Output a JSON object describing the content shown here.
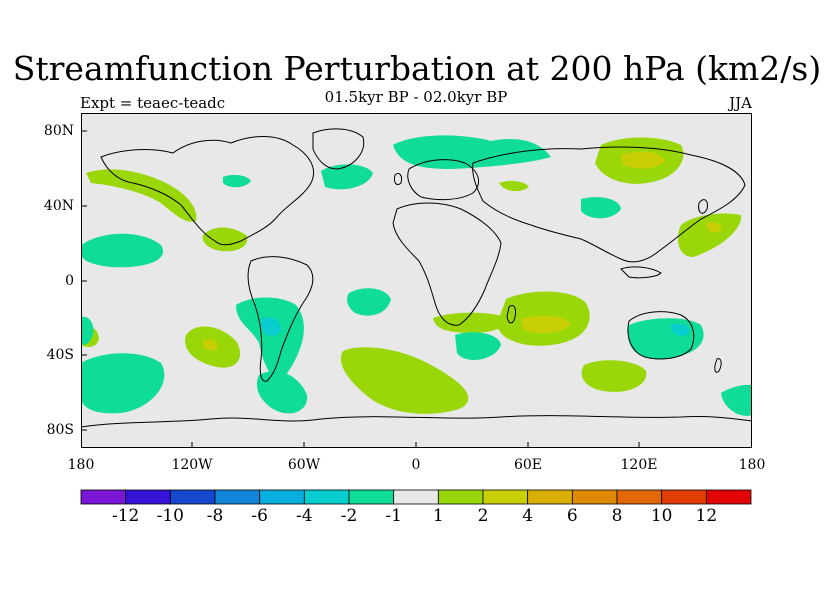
{
  "header": {
    "title": "Streamfunction Perturbation at 200 hPa (km2/s)",
    "center_subtitle": "01.5kyr BP - 02.0kyr BP",
    "left_subtitle": "Expt = teaec-teadc",
    "right_subtitle": "JJA"
  },
  "axes": {
    "y_ticks": [
      "80N",
      "40N",
      "0",
      "40S",
      "80S"
    ],
    "x_ticks": [
      "180",
      "120W",
      "60W",
      "0",
      "60E",
      "120E",
      "180"
    ]
  },
  "colorbar": {
    "labels": [
      "-12",
      "-10",
      "-8",
      "-6",
      "-4",
      "-2",
      "-1",
      "1",
      "2",
      "4",
      "6",
      "8",
      "10",
      "12"
    ],
    "colors": [
      "#7b16d6",
      "#3612d6",
      "#1648cf",
      "#1186d8",
      "#06aedd",
      "#08cdcf",
      "#10dc9a",
      "#e8e8e8",
      "#9ad708",
      "#c8d005",
      "#d9af04",
      "#de8a04",
      "#e16804",
      "#e23d03",
      "#e20404"
    ]
  },
  "colors": {
    "background": "#e8e8e8",
    "positive_1_2": "#9ad708",
    "positive_2_4": "#c8d005",
    "negative_1_2": "#10dc9a",
    "negative_2_4": "#08cdcf"
  }
}
